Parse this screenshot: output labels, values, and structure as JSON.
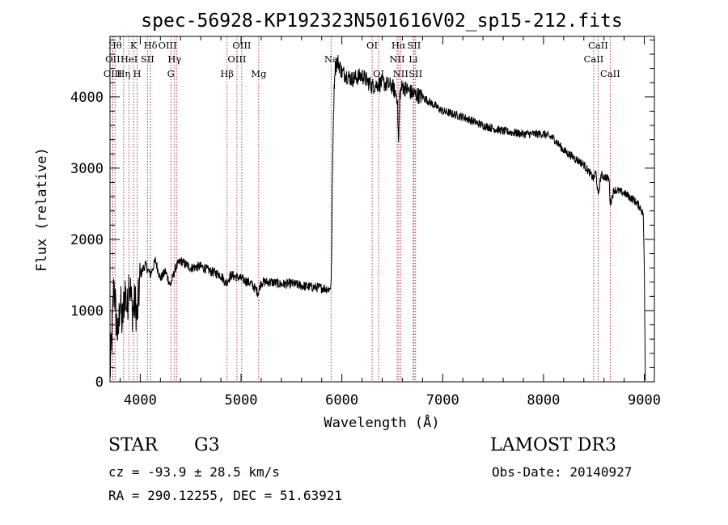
{
  "chart_data": {
    "type": "line",
    "title": "spec-56928-KP192323N501616V02_sp15-212.fits",
    "xlabel": "Wavelength (Å)",
    "ylabel": "Flux (relative)",
    "xlim": [
      3700,
      9100
    ],
    "ylim": [
      0,
      4850
    ],
    "xticks": [
      4000,
      5000,
      6000,
      7000,
      8000,
      9000
    ],
    "yticks": [
      0,
      1000,
      2000,
      3000,
      4000
    ],
    "x_minor_step": 200,
    "y_minor_step": 200,
    "spectral_lines": [
      {
        "w": 3750,
        "label": "Hθ",
        "row": 0,
        "ha": "middle"
      },
      {
        "w": 3727,
        "label": "OII",
        "row": 1,
        "ha": "middle"
      },
      {
        "w": 3727,
        "label": "OIII",
        "row": 2,
        "ha": "middle"
      },
      {
        "w": 3835,
        "label": "Hη",
        "row": 2,
        "ha": "middle"
      },
      {
        "w": 3889,
        "label": "HeI",
        "row": 1,
        "ha": "middle"
      },
      {
        "w": 3934,
        "label": "K",
        "row": 0,
        "ha": "middle"
      },
      {
        "w": 3969,
        "label": "H",
        "row": 2,
        "ha": "middle"
      },
      {
        "w": 4072,
        "label": "SII",
        "row": 1,
        "ha": "middle"
      },
      {
        "w": 4102,
        "label": "Hδ",
        "row": 0,
        "ha": "middle"
      },
      {
        "w": 4304,
        "label": "G",
        "row": 2,
        "ha": "middle"
      },
      {
        "w": 4340,
        "label": "Hγ",
        "row": 1,
        "ha": "middle"
      },
      {
        "w": 4363,
        "label": "OIII",
        "row": 0,
        "ha": "end"
      },
      {
        "w": 4861,
        "label": "Hβ",
        "row": 2,
        "ha": "middle"
      },
      {
        "w": 4959,
        "label": "OIII",
        "row": 1,
        "ha": "middle"
      },
      {
        "w": 5007,
        "label": "OIII",
        "row": 0,
        "ha": "middle"
      },
      {
        "w": 5175,
        "label": "Mg",
        "row": 2,
        "ha": "middle"
      },
      {
        "w": 5893,
        "label": "Na",
        "row": 1,
        "ha": "middle"
      },
      {
        "w": 6300,
        "label": "OI",
        "row": 0,
        "ha": "middle"
      },
      {
        "w": 6364,
        "label": "OI",
        "row": 2,
        "ha": "middle"
      },
      {
        "w": 6548,
        "label": "NII",
        "row": 1,
        "ha": "middle"
      },
      {
        "w": 6563,
        "label": "Hα",
        "row": 0,
        "ha": "middle"
      },
      {
        "w": 6583,
        "label": "NII",
        "row": 2,
        "ha": "middle"
      },
      {
        "w": 6708,
        "label": "Li",
        "row": 1,
        "ha": "middle"
      },
      {
        "w": 6716,
        "label": "SII",
        "row": 0,
        "ha": "middle"
      },
      {
        "w": 6731,
        "label": "SII",
        "row": 2,
        "ha": "middle"
      },
      {
        "w": 8498,
        "label": "CaII",
        "row": 1,
        "ha": "middle"
      },
      {
        "w": 8542,
        "label": "CaII",
        "row": 0,
        "ha": "middle"
      },
      {
        "w": 8662,
        "label": "CaII",
        "row": 2,
        "ha": "middle"
      }
    ],
    "series": [
      {
        "name": "spectrum",
        "anchors": [
          [
            3700,
            100
          ],
          [
            3720,
            700
          ],
          [
            3740,
            1400
          ],
          [
            3760,
            900
          ],
          [
            3780,
            600
          ],
          [
            3800,
            1200
          ],
          [
            3820,
            800
          ],
          [
            3850,
            1300
          ],
          [
            3870,
            1000
          ],
          [
            3890,
            1500
          ],
          [
            3920,
            1000
          ],
          [
            3950,
            1100
          ],
          [
            3970,
            900
          ],
          [
            4000,
            1500
          ],
          [
            4050,
            1650
          ],
          [
            4100,
            1500
          ],
          [
            4150,
            1700
          ],
          [
            4200,
            1450
          ],
          [
            4250,
            1550
          ],
          [
            4300,
            1350
          ],
          [
            4350,
            1600
          ],
          [
            4400,
            1700
          ],
          [
            4450,
            1650
          ],
          [
            4500,
            1600
          ],
          [
            4600,
            1620
          ],
          [
            4700,
            1550
          ],
          [
            4800,
            1500
          ],
          [
            4850,
            1380
          ],
          [
            4900,
            1500
          ],
          [
            5000,
            1450
          ],
          [
            5100,
            1380
          ],
          [
            5170,
            1250
          ],
          [
            5200,
            1400
          ],
          [
            5300,
            1400
          ],
          [
            5400,
            1370
          ],
          [
            5500,
            1380
          ],
          [
            5600,
            1350
          ],
          [
            5700,
            1330
          ],
          [
            5800,
            1320
          ],
          [
            5880,
            1300
          ],
          [
            5895,
            1400
          ],
          [
            5905,
            2700
          ],
          [
            5915,
            3700
          ],
          [
            5930,
            4400
          ],
          [
            5960,
            4500
          ],
          [
            6000,
            4350
          ],
          [
            6100,
            4250
          ],
          [
            6200,
            4300
          ],
          [
            6300,
            4150
          ],
          [
            6400,
            4200
          ],
          [
            6500,
            4150
          ],
          [
            6550,
            4000
          ],
          [
            6563,
            3300
          ],
          [
            6575,
            4050
          ],
          [
            6600,
            4150
          ],
          [
            6700,
            4050
          ],
          [
            6800,
            4000
          ],
          [
            6900,
            3900
          ],
          [
            7000,
            3800
          ],
          [
            7200,
            3720
          ],
          [
            7400,
            3600
          ],
          [
            7600,
            3520
          ],
          [
            7800,
            3480
          ],
          [
            8000,
            3480
          ],
          [
            8100,
            3420
          ],
          [
            8200,
            3250
          ],
          [
            8300,
            3150
          ],
          [
            8400,
            3050
          ],
          [
            8498,
            2850
          ],
          [
            8520,
            2950
          ],
          [
            8542,
            2600
          ],
          [
            8570,
            2900
          ],
          [
            8650,
            2850
          ],
          [
            8662,
            2500
          ],
          [
            8700,
            2700
          ],
          [
            8800,
            2650
          ],
          [
            8900,
            2550
          ],
          [
            8960,
            2450
          ],
          [
            8990,
            2350
          ],
          [
            9000,
            1600
          ],
          [
            9010,
            0
          ]
        ]
      }
    ]
  },
  "footer": {
    "object_class": "STAR",
    "subclass": "G3",
    "redshift": "cz = -93.9 ± 28.5 km/s",
    "coords": "RA = 290.12255, DEC =  51.63921",
    "survey": "LAMOST DR3",
    "obs_date": "Obs-Date: 20140927"
  }
}
